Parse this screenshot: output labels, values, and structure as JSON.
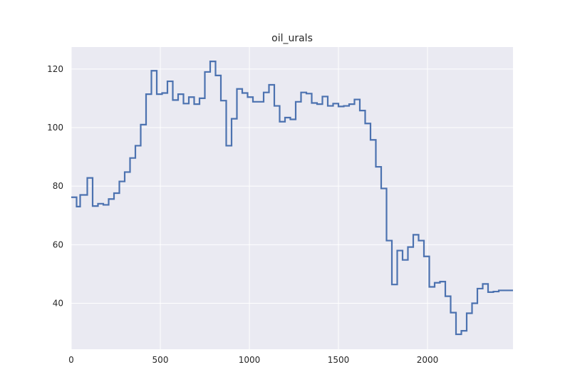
{
  "chart_data": {
    "type": "line",
    "step": true,
    "title": "oil_urals",
    "xlabel": "",
    "ylabel": "",
    "xlim": [
      0,
      2480
    ],
    "ylim": [
      24.3,
      127.5
    ],
    "x_ticks": [
      0,
      500,
      1000,
      1500,
      2000
    ],
    "y_ticks": [
      40,
      60,
      80,
      100,
      120
    ],
    "grid": true,
    "line_color": "#4c72b0",
    "background_color": "#eaeaf2",
    "series": [
      {
        "x": [
          0,
          30,
          50,
          90,
          120,
          150,
          180,
          210,
          240,
          270,
          300,
          330,
          360,
          390,
          420,
          450,
          480,
          510,
          540,
          570,
          600,
          630,
          660,
          690,
          720,
          750,
          780,
          810,
          840,
          870,
          900,
          930,
          960,
          990,
          1020,
          1050,
          1080,
          1110,
          1140,
          1170,
          1200,
          1230,
          1260,
          1290,
          1320,
          1350,
          1380,
          1410,
          1440,
          1470,
          1500,
          1530,
          1560,
          1590,
          1620,
          1650,
          1680,
          1710,
          1740,
          1770,
          1800,
          1830,
          1860,
          1890,
          1920,
          1950,
          1980,
          2010,
          2040,
          2070,
          2100,
          2130,
          2160,
          2190,
          2220,
          2250,
          2280,
          2310,
          2340,
          2370,
          2400,
          2430,
          2460
        ],
        "y": [
          76.2,
          73.0,
          77.0,
          82.8,
          73.2,
          74.0,
          73.6,
          75.6,
          77.6,
          81.6,
          84.8,
          89.6,
          93.8,
          101.0,
          111.4,
          119.4,
          111.4,
          111.8,
          115.8,
          109.4,
          111.4,
          108.2,
          110.4,
          108.0,
          110.0,
          119.0,
          122.6,
          117.8,
          109.2,
          93.8,
          103.0,
          113.2,
          111.8,
          110.4,
          108.8,
          108.8,
          112.0,
          114.6,
          107.4,
          102.0,
          103.4,
          102.8,
          108.8,
          112.0,
          111.6,
          108.4,
          108.0,
          110.6,
          107.4,
          108.2,
          107.2,
          107.4,
          108.0,
          109.6,
          105.8,
          101.4,
          95.8,
          86.6,
          79.2,
          61.4,
          46.4,
          58.0,
          54.8,
          59.2,
          63.4,
          61.4,
          56.0,
          45.6,
          47.0,
          47.4,
          42.4,
          36.8,
          29.4,
          30.6,
          36.6,
          40.0,
          45.0,
          46.6,
          43.8,
          44.0,
          44.4,
          44.4,
          44.4
        ]
      }
    ]
  }
}
